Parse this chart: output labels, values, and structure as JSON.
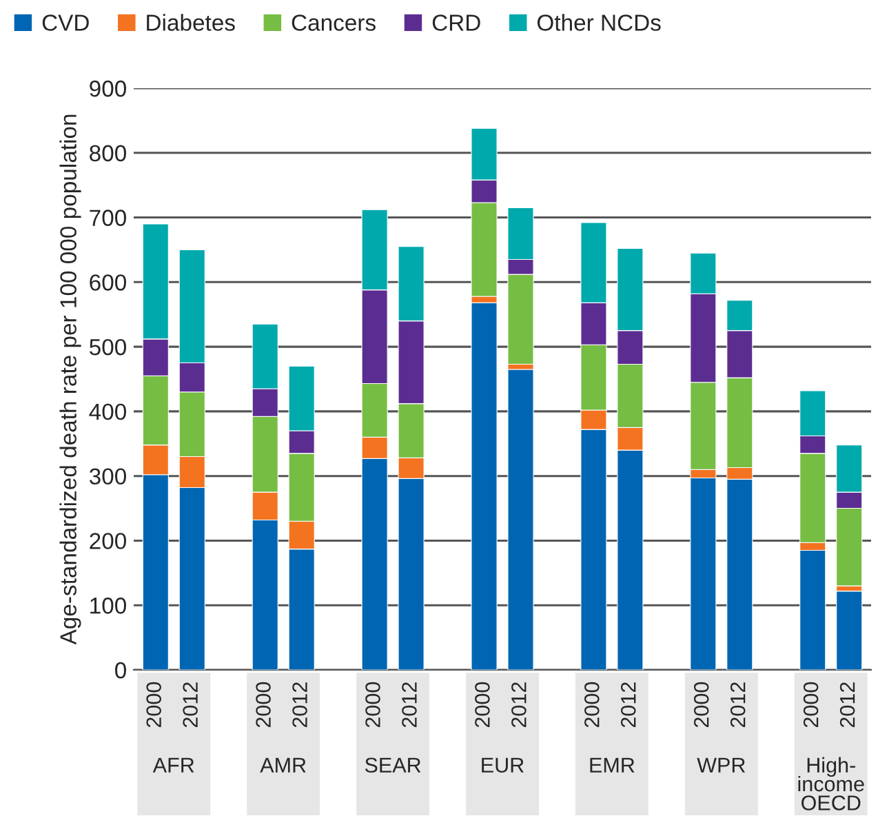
{
  "chart_data": {
    "type": "bar",
    "stacked": true,
    "ylabel": "Age-standardized death rate per 100 000 population",
    "categories": [
      "2000",
      "2012",
      null,
      "2000",
      "2012",
      null,
      "2000",
      "2012",
      null,
      "2000",
      "2012",
      null,
      "2000",
      "2012",
      null,
      "2000",
      "2012",
      null,
      "2000",
      "2012"
    ],
    "series": [
      {
        "name": "CVD",
        "color": "#0066b3",
        "values": [
          302,
          282,
          null,
          232,
          187,
          null,
          327,
          296,
          null,
          568,
          465,
          null,
          372,
          340,
          null,
          297,
          295,
          null,
          185,
          122
        ]
      },
      {
        "name": "Diabetes",
        "color": "#f47321",
        "values": [
          46,
          48,
          null,
          43,
          43,
          null,
          33,
          32,
          null,
          10,
          8,
          null,
          30,
          35,
          null,
          13,
          18,
          null,
          12,
          8
        ]
      },
      {
        "name": "Cancers",
        "color": "#76bd43",
        "values": [
          107,
          100,
          null,
          117,
          105,
          null,
          83,
          84,
          null,
          145,
          139,
          null,
          101,
          98,
          null,
          135,
          139,
          null,
          138,
          120
        ]
      },
      {
        "name": "CRD",
        "color": "#5c2d91",
        "values": [
          57,
          45,
          null,
          43,
          35,
          null,
          145,
          128,
          null,
          35,
          23,
          null,
          65,
          52,
          null,
          137,
          73,
          null,
          27,
          25
        ]
      },
      {
        "name": "Other NCDs",
        "color": "#00a9ac",
        "values": [
          178,
          175,
          null,
          100,
          100,
          null,
          124,
          115,
          null,
          80,
          80,
          null,
          124,
          127,
          null,
          63,
          47,
          null,
          70,
          73
        ]
      }
    ],
    "annotations": [
      "AFR",
      "AMR",
      "SEAR",
      "EUR",
      "EMR",
      "WPR",
      "High-\nincome\nOECD"
    ],
    "ylim": [
      0,
      900
    ],
    "yticks": [
      0,
      100,
      200,
      300,
      400,
      500,
      600,
      700,
      800,
      900
    ],
    "grid": "y",
    "legend": "top left"
  }
}
